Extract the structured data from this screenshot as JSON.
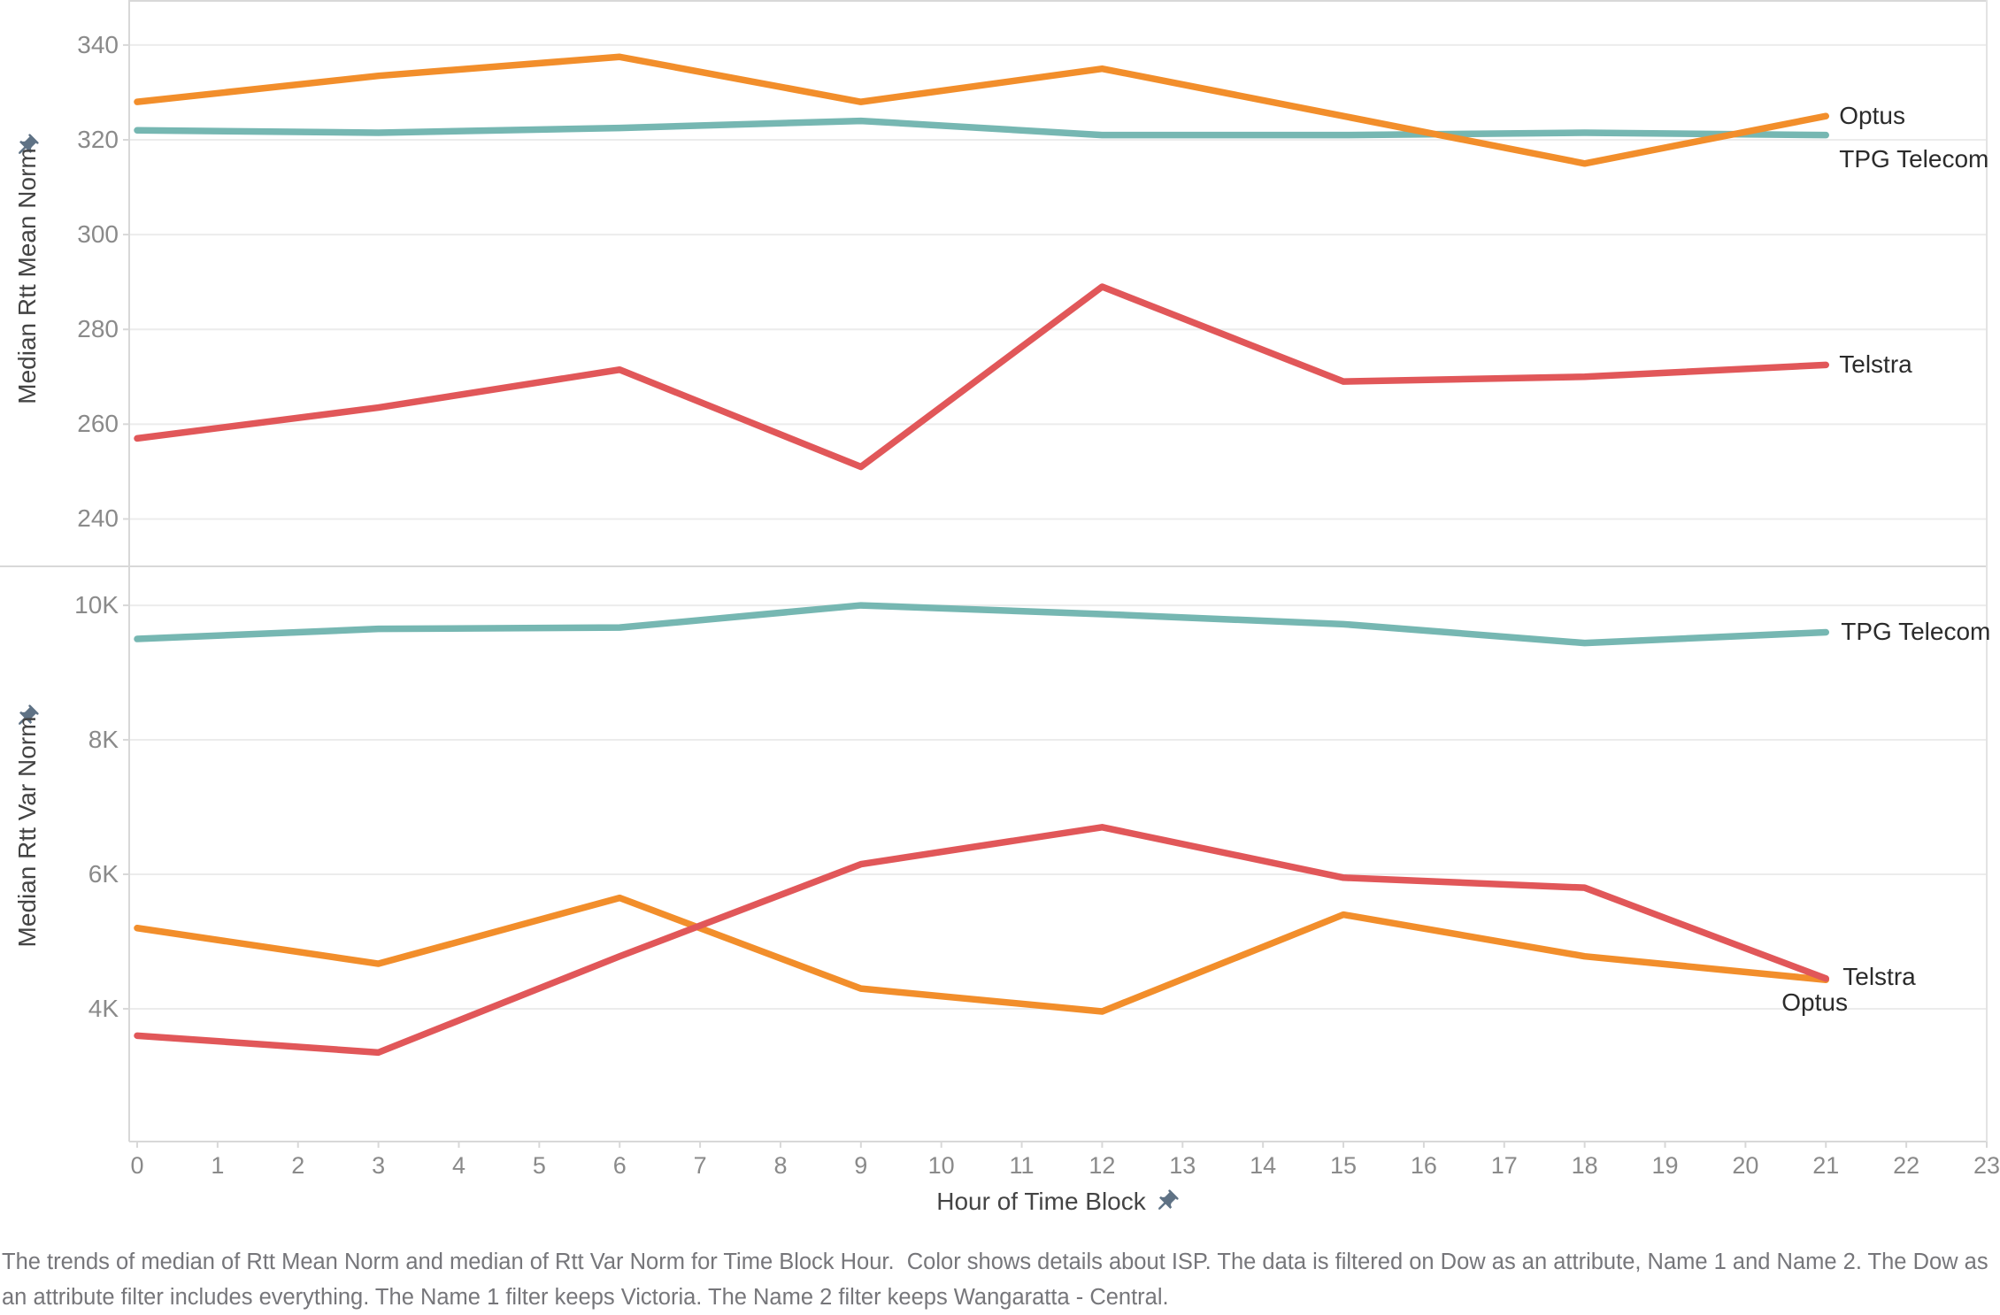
{
  "x_axis": {
    "title": "Hour of Time Block",
    "tick_labels": [
      "0",
      "1",
      "2",
      "3",
      "4",
      "5",
      "6",
      "7",
      "8",
      "9",
      "10",
      "11",
      "12",
      "13",
      "14",
      "15",
      "16",
      "17",
      "18",
      "19",
      "20",
      "21",
      "22",
      "23"
    ]
  },
  "caption": "The trends of median of Rtt Mean Norm and median of Rtt Var Norm for Time Block Hour.  Color shows details about ISP. The data is filtered on Dow as an attribute, Name 1 and Name 2. The Dow as an attribute filter includes everything. The Name 1 filter keeps Victoria. The Name 2 filter keeps Wangaratta - Central.",
  "icons": {
    "pin": "pushpin-icon"
  },
  "colors": {
    "optus": "#F28E2B",
    "tpg_telecom": "#76B7B2",
    "telstra": "#E15759",
    "gridline": "#ececec",
    "pane_border": "#d8d8d8",
    "tick_text": "#8a8a8a",
    "pin": "#5f7285"
  },
  "chart_data": [
    {
      "type": "line",
      "ylabel": "Median Rtt Mean Norm",
      "xlabel": "Hour of Time Block",
      "x": [
        0,
        3,
        6,
        9,
        12,
        15,
        18,
        21
      ],
      "xlim": [
        0,
        23
      ],
      "ylim": [
        230,
        349.5
      ],
      "grid": "horizontal",
      "legend_position": "line-end-labels",
      "ytick_values": [
        340,
        320,
        300,
        280,
        260,
        240
      ],
      "ytick_labels": [
        "340",
        "320",
        "300",
        "280",
        "260",
        "240"
      ],
      "series": [
        {
          "name": "TPG Telecom",
          "color": "#76B7B2",
          "values": [
            322,
            321.5,
            322.5,
            324,
            321,
            321,
            321.5,
            321
          ]
        },
        {
          "name": "Optus",
          "color": "#F28E2B",
          "values": [
            328,
            333.5,
            337.5,
            328,
            335,
            325,
            315,
            325
          ]
        },
        {
          "name": "Telstra",
          "color": "#E15759",
          "values": [
            257,
            263.5,
            271.5,
            251,
            289,
            269,
            270,
            272.5
          ]
        }
      ]
    },
    {
      "type": "line",
      "ylabel": "Median Rtt Var Norm",
      "xlabel": "Hour of Time Block",
      "x": [
        0,
        3,
        6,
        9,
        12,
        15,
        18,
        21
      ],
      "xlim": [
        0,
        23
      ],
      "ylim": [
        2025,
        10580
      ],
      "grid": "horizontal",
      "legend_position": "line-end-labels",
      "ytick_values": [
        10000,
        8000,
        6000,
        4000
      ],
      "ytick_labels": [
        "10K",
        "8K",
        "6K",
        "4K"
      ],
      "series": [
        {
          "name": "TPG Telecom",
          "color": "#76B7B2",
          "values": [
            9500,
            9650,
            9670,
            10000,
            9870,
            9720,
            9440,
            9600
          ]
        },
        {
          "name": "Optus",
          "color": "#F28E2B",
          "values": [
            5200,
            4670,
            5650,
            4300,
            3960,
            5400,
            4780,
            4430
          ]
        },
        {
          "name": "Telstra",
          "color": "#E15759",
          "values": [
            3600,
            3350,
            4780,
            6150,
            6700,
            5950,
            5800,
            4450
          ]
        }
      ]
    }
  ]
}
